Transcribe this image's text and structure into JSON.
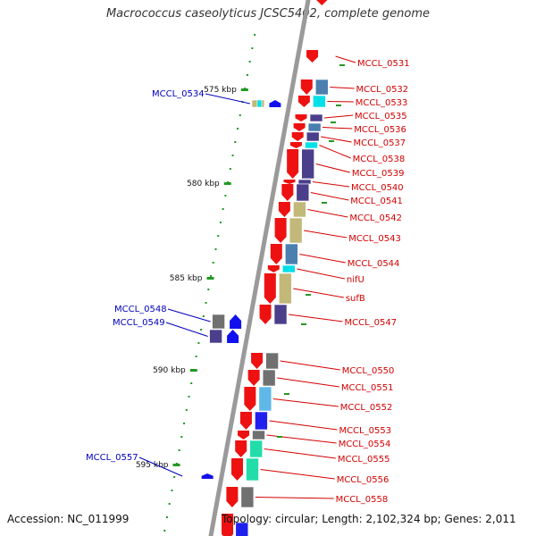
{
  "title": "Macrococcus caseolyticus JCSC5402, complete genome",
  "footer": {
    "accession": "Accession: NC_011999",
    "topology": "Topology: circular; Length: 2,102,324 bp; Genes: 2,011"
  },
  "colors": {
    "backbone": "#9a9a9a",
    "minus_strand_gene": "#ee1111",
    "plus_strand_gene": "#1111ee",
    "minus_label": "#d40000",
    "plus_label": "#0000bb",
    "tick": "#229922",
    "cog_purple": "#4b3f8c",
    "cog_olive": "#c2b87a",
    "cog_steel": "#4a7fb0",
    "cog_sky": "#5fb8e8",
    "cog_cyan": "#00e0e8",
    "cog_green": "#22ddaa",
    "cog_gray": "#707070"
  },
  "scale_labels": [
    "575 kbp",
    "580 kbp",
    "585 kbp",
    "590 kbp",
    "595 kbp"
  ],
  "minus_genes": [
    "MCCL_0531",
    "MCCL_0532",
    "MCCL_0533",
    "MCCL_0535",
    "MCCL_0536",
    "MCCL_0537",
    "MCCL_0538",
    "MCCL_0539",
    "MCCL_0540",
    "MCCL_0541",
    "MCCL_0542",
    "MCCL_0543",
    "MCCL_0544",
    "nifU",
    "sufB",
    "MCCL_0547",
    "MCCL_0550",
    "MCCL_0551",
    "MCCL_0552",
    "MCCL_0553",
    "MCCL_0554",
    "MCCL_0555",
    "MCCL_0556",
    "MCCL_0558"
  ],
  "plus_genes": [
    "MCCL_0534",
    "MCCL_0548",
    "MCCL_0549",
    "MCCL_0557"
  ]
}
